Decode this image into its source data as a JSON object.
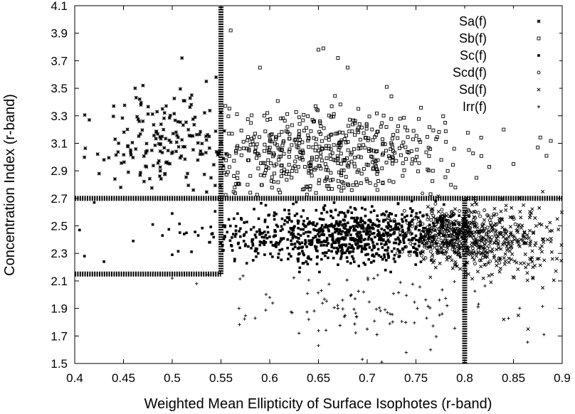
{
  "chart_data": {
    "type": "scatter",
    "title": "",
    "xlabel": "Weighted Mean Ellipticity of Surface Isophotes (r-band)",
    "ylabel": "Concentration Index (r-band)",
    "xlim": [
      0.4,
      0.9
    ],
    "ylim": [
      1.5,
      4.1
    ],
    "xticks": [
      "0.4",
      "0.45",
      "0.5",
      "0.55",
      "0.6",
      "0.65",
      "0.7",
      "0.75",
      "0.8",
      "0.85",
      "0.9"
    ],
    "yticks": [
      "1.5",
      "1.7",
      "1.9",
      "2.1",
      "2.3",
      "2.5",
      "2.7",
      "2.9",
      "3.1",
      "3.3",
      "3.5",
      "3.7",
      "3.9",
      "4.1"
    ],
    "grid": false,
    "legend_position": "top-right",
    "series": [
      {
        "name": "Sa(f)",
        "marker": "star",
        "center": [
          0.5,
          3.1
        ],
        "spread": [
          0.04,
          0.17
        ],
        "count": 170,
        "values": [
          [
            0.51,
            3.72
          ],
          [
            0.47,
            3.52
          ],
          [
            0.44,
            3.37
          ],
          [
            0.415,
            3.27
          ],
          [
            0.445,
            3.1
          ],
          [
            0.43,
            2.98
          ],
          [
            0.455,
            2.89
          ],
          [
            0.425,
            2.88
          ],
          [
            0.49,
            3.35
          ],
          [
            0.52,
            3.45
          ],
          [
            0.535,
            3.55
          ],
          [
            0.545,
            3.58
          ]
        ]
      },
      {
        "name": "Sb(f)",
        "marker": "open-square",
        "center": [
          0.65,
          3.02
        ],
        "spread": [
          0.07,
          0.17
        ],
        "count": 520,
        "values": [
          [
            0.56,
            3.92
          ],
          [
            0.655,
            3.79
          ],
          [
            0.65,
            3.78
          ],
          [
            0.59,
            3.65
          ],
          [
            0.68,
            3.65
          ],
          [
            0.67,
            3.72
          ],
          [
            0.72,
            3.51
          ],
          [
            0.78,
            3.25
          ],
          [
            0.84,
            3.2
          ],
          [
            0.875,
            3.07
          ],
          [
            0.85,
            2.95
          ]
        ]
      },
      {
        "name": "Sc(f)",
        "marker": "filled-square",
        "center": [
          0.68,
          2.43
        ],
        "spread": [
          0.065,
          0.1
        ],
        "count": 900,
        "values": [
          [
            0.405,
            2.47
          ],
          [
            0.41,
            2.28
          ],
          [
            0.43,
            2.24
          ],
          [
            0.46,
            2.39
          ],
          [
            0.48,
            2.51
          ],
          [
            0.49,
            2.43
          ],
          [
            0.5,
            2.59
          ],
          [
            0.5,
            2.29
          ],
          [
            0.42,
            2.67
          ]
        ]
      },
      {
        "name": "Scd(f)",
        "marker": "open-circle",
        "center": [
          0.785,
          2.45
        ],
        "spread": [
          0.028,
          0.09
        ],
        "count": 320,
        "values": [
          [
            0.77,
            2.66
          ],
          [
            0.8,
            2.6
          ],
          [
            0.78,
            2.3
          ]
        ]
      },
      {
        "name": "Sd(f)",
        "marker": "cross",
        "center": [
          0.83,
          2.4
        ],
        "spread": [
          0.04,
          0.13
        ],
        "count": 360,
        "values": [
          [
            0.885,
            2.4
          ],
          [
            0.89,
            2.26
          ],
          [
            0.88,
            2.05
          ],
          [
            0.84,
            1.82
          ],
          [
            0.855,
            1.85
          ],
          [
            0.865,
            1.75
          ],
          [
            0.895,
            2.55
          ],
          [
            0.81,
            2.7
          ]
        ]
      },
      {
        "name": "Irr(f)",
        "marker": "plus",
        "center": [
          0.7,
          1.93
        ],
        "spread": [
          0.07,
          0.14
        ],
        "count": 95,
        "values": [
          [
            0.5,
            2.12
          ],
          [
            0.525,
            2.08
          ],
          [
            0.6,
            1.98
          ],
          [
            0.64,
            1.82
          ],
          [
            0.67,
            1.9
          ],
          [
            0.63,
            1.72
          ],
          [
            0.65,
            1.63
          ],
          [
            0.695,
            1.53
          ],
          [
            0.715,
            1.51
          ],
          [
            0.74,
            1.58
          ],
          [
            0.765,
            1.6
          ],
          [
            0.7,
            1.75
          ],
          [
            0.71,
            1.71
          ]
        ]
      }
    ],
    "reference_lines": [
      {
        "orientation": "vertical",
        "x": 0.55,
        "y_range": [
          2.15,
          4.1
        ]
      },
      {
        "orientation": "horizontal",
        "y": 2.7,
        "x_range": [
          0.4,
          0.9
        ]
      },
      {
        "orientation": "horizontal",
        "y": 2.15,
        "x_range": [
          0.4,
          0.55
        ]
      },
      {
        "orientation": "vertical",
        "x": 0.8,
        "y_range": [
          1.5,
          2.7
        ]
      }
    ]
  }
}
